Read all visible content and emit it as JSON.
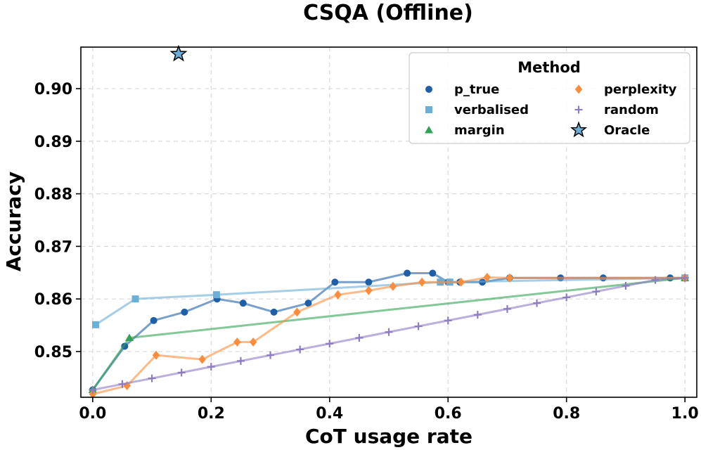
{
  "chart_data": {
    "type": "line",
    "title": "CSQA (Offline)",
    "xlabel": "CoT usage rate",
    "ylabel": "Accuracy",
    "xlim": [
      -0.02,
      1.02
    ],
    "ylim": [
      0.8413,
      0.9079
    ],
    "xticks": [
      0.0,
      0.2,
      0.4,
      0.6,
      0.8,
      1.0
    ],
    "xtick_labels": [
      "0.0",
      "0.2",
      "0.4",
      "0.6",
      "0.8",
      "1.0"
    ],
    "yticks": [
      0.85,
      0.86,
      0.87,
      0.88,
      0.89,
      0.9
    ],
    "ytick_labels": [
      "0.85",
      "0.86",
      "0.87",
      "0.88",
      "0.89",
      "0.90"
    ],
    "grid": true,
    "legend": {
      "title": "Method",
      "placement": "top-right",
      "columns": 2
    },
    "series": [
      {
        "name": "p_true",
        "color": "#1f5fa8",
        "marker": "circle",
        "x": [
          0.0,
          0.054,
          0.103,
          0.155,
          0.21,
          0.254,
          0.306,
          0.364,
          0.409,
          0.466,
          0.531,
          0.574,
          0.6,
          0.62,
          0.658,
          0.704,
          0.79,
          0.862,
          0.975,
          1.0
        ],
        "y": [
          0.8427,
          0.851,
          0.8559,
          0.8575,
          0.86,
          0.8592,
          0.8575,
          0.8592,
          0.8632,
          0.8632,
          0.8649,
          0.8649,
          0.8632,
          0.8632,
          0.8632,
          0.864,
          0.864,
          0.864,
          0.864,
          0.864
        ]
      },
      {
        "name": "verbalised",
        "color": "#6baed6",
        "marker": "square",
        "x": [
          0.005,
          0.072,
          0.209,
          0.587,
          0.603,
          1.0
        ],
        "y": [
          0.8551,
          0.86,
          0.8608,
          0.8632,
          0.8632,
          0.864
        ]
      },
      {
        "name": "margin",
        "color": "#31a354",
        "marker": "triangle",
        "x": [
          0.0,
          0.062,
          1.0
        ],
        "y": [
          0.8427,
          0.8526,
          0.864
        ]
      },
      {
        "name": "perplexity",
        "color": "#fd8d3c",
        "marker": "diamond",
        "x": [
          0.0,
          0.058,
          0.107,
          0.185,
          0.244,
          0.271,
          0.345,
          0.414,
          0.466,
          0.507,
          0.556,
          0.622,
          0.666,
          0.704,
          1.0
        ],
        "y": [
          0.8419,
          0.8435,
          0.8493,
          0.8485,
          0.8518,
          0.8518,
          0.8575,
          0.8608,
          0.8616,
          0.8624,
          0.8632,
          0.8632,
          0.8641,
          0.864,
          0.864
        ]
      },
      {
        "name": "random",
        "color": "#8e7cc3",
        "marker": "plus",
        "x": [
          0.0,
          0.05,
          0.1,
          0.15,
          0.2,
          0.25,
          0.3,
          0.35,
          0.4,
          0.45,
          0.5,
          0.55,
          0.6,
          0.65,
          0.7,
          0.75,
          0.8,
          0.85,
          0.9,
          0.95,
          1.0
        ],
        "y": [
          0.8427,
          0.8438,
          0.8449,
          0.846,
          0.8471,
          0.8482,
          0.8493,
          0.8504,
          0.8515,
          0.8526,
          0.8537,
          0.8548,
          0.8559,
          0.857,
          0.8581,
          0.8592,
          0.8603,
          0.8614,
          0.8625,
          0.8636,
          0.864
        ]
      }
    ],
    "oracle": {
      "name": "Oracle",
      "color": "#6baed6",
      "marker": "star",
      "x": 0.145,
      "y": 0.9066
    }
  }
}
